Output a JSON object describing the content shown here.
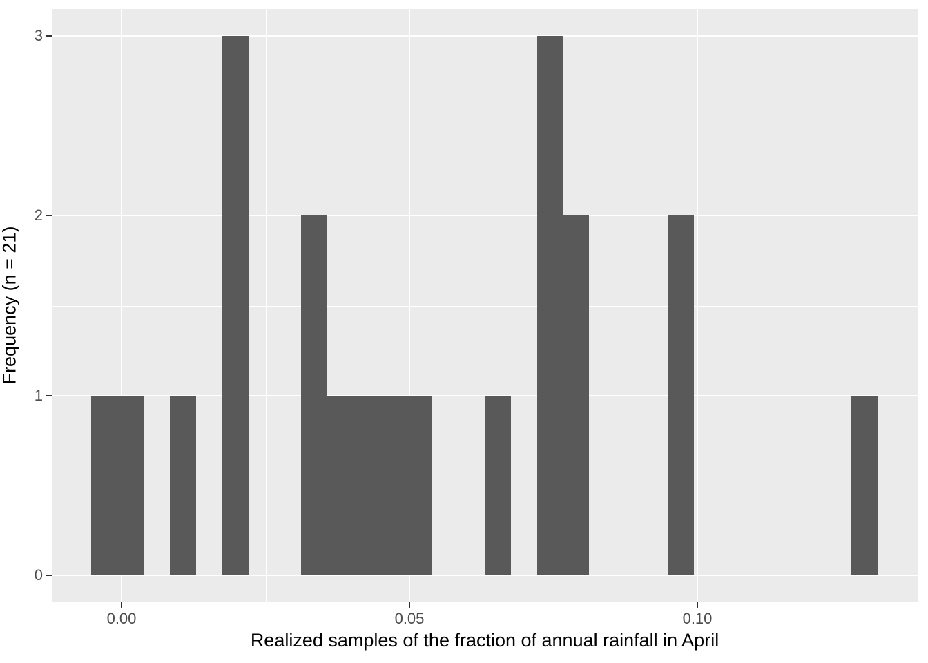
{
  "chart_data": {
    "type": "bar",
    "subtype": "histogram",
    "title": "",
    "xlabel": "Realized samples of the fraction of annual rainfall in April",
    "ylabel": "Frequency (n = 21)",
    "n_total": 21,
    "bin_width": 0.00455,
    "bins": [
      {
        "center": -0.003,
        "count": 1
      },
      {
        "center": 0.0016,
        "count": 1
      },
      {
        "center": 0.0107,
        "count": 1
      },
      {
        "center": 0.0198,
        "count": 3
      },
      {
        "center": 0.0334,
        "count": 2
      },
      {
        "center": 0.038,
        "count": 1
      },
      {
        "center": 0.0425,
        "count": 1
      },
      {
        "center": 0.0471,
        "count": 1
      },
      {
        "center": 0.0516,
        "count": 1
      },
      {
        "center": 0.0653,
        "count": 1
      },
      {
        "center": 0.0744,
        "count": 3
      },
      {
        "center": 0.0789,
        "count": 2
      },
      {
        "center": 0.0971,
        "count": 2
      },
      {
        "center": 0.129,
        "count": 1
      }
    ],
    "x_ticks": [
      {
        "value": 0.0,
        "label": "0.00"
      },
      {
        "value": 0.05,
        "label": "0.05"
      },
      {
        "value": 0.1,
        "label": "0.10"
      }
    ],
    "y_ticks": [
      {
        "value": 0,
        "label": "0"
      },
      {
        "value": 1,
        "label": "1"
      },
      {
        "value": 2,
        "label": "2"
      },
      {
        "value": 3,
        "label": "3"
      }
    ],
    "x_minor_gridlines": [
      0.025,
      0.075,
      0.125
    ],
    "y_minor_gridlines": [
      0.5,
      1.5,
      2.5
    ],
    "xlim": [
      -0.0121,
      0.1382
    ],
    "ylim": [
      -0.15,
      3.15
    ],
    "grid": "major-and-minor, white on gray panel",
    "legend_position": "none",
    "colors": {
      "bar": "#595959",
      "panel_bg": "#EBEBEB",
      "gridline": "#FFFFFF",
      "tick_label": "#4D4D4D",
      "axis_title": "#000000",
      "tick_mark": "#333333",
      "outer_bg": "#FFFFFF"
    }
  }
}
